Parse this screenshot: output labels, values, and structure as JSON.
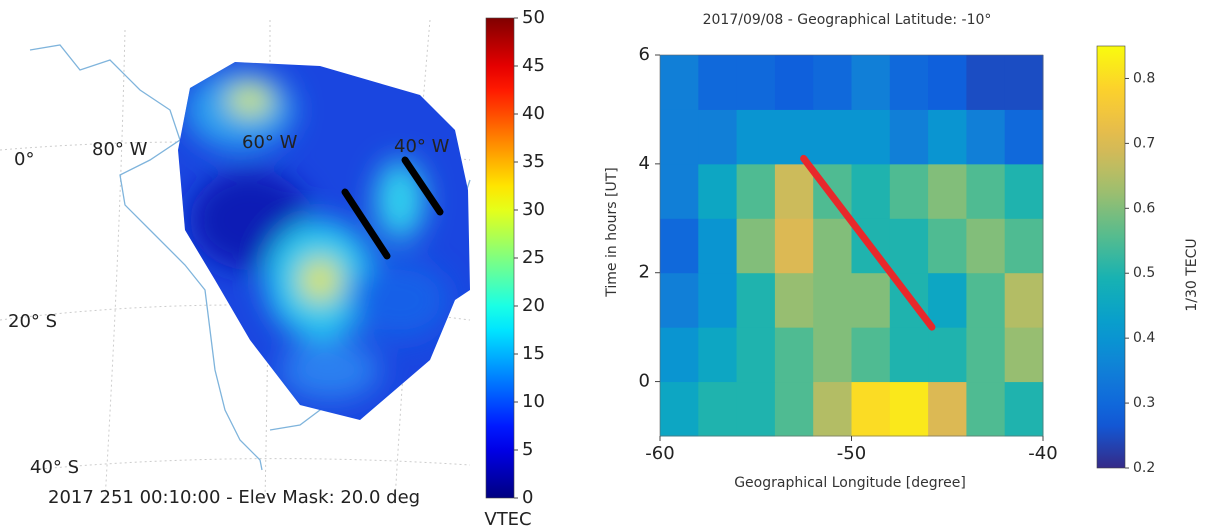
{
  "chart_data": [
    {
      "type": "map",
      "caption": "2017 251 00:10:00 - Elev Mask: 20.0 deg",
      "labels": [
        "0°",
        "80° W",
        "60° W",
        "40° W",
        "20° S",
        "40° S"
      ],
      "colorbar": {
        "label": "VTEC",
        "lim": [
          0,
          50
        ],
        "ticks": [
          0,
          5,
          10,
          15,
          20,
          25,
          30,
          35,
          40,
          45,
          50
        ],
        "colormap": "jet"
      }
    },
    {
      "type": "heatmap",
      "title": "2017/09/08 - Geographical Latitude: -10°",
      "xlabel": "Geographical Longitude [degree]",
      "ylabel": "Time in hours [UT]",
      "xlim": [
        -60,
        -40
      ],
      "xticks": [
        -60,
        -50,
        -40
      ],
      "ylim": [
        -1,
        6
      ],
      "yticks": [
        0,
        2,
        4,
        6
      ],
      "x": [
        -59,
        -57,
        -55,
        -53,
        -51,
        -49,
        -47,
        -45,
        -43,
        -41
      ],
      "y": [
        -0.5,
        0.5,
        1.5,
        2.5,
        3.5,
        4.5,
        5.5
      ],
      "z": [
        [
          0.45,
          0.5,
          0.5,
          0.55,
          0.65,
          0.8,
          0.82,
          0.7,
          0.55,
          0.5
        ],
        [
          0.4,
          0.45,
          0.5,
          0.55,
          0.6,
          0.55,
          0.5,
          0.5,
          0.55,
          0.62
        ],
        [
          0.35,
          0.4,
          0.5,
          0.62,
          0.6,
          0.6,
          0.5,
          0.45,
          0.55,
          0.65
        ],
        [
          0.3,
          0.4,
          0.6,
          0.7,
          0.6,
          0.5,
          0.5,
          0.55,
          0.6,
          0.55
        ],
        [
          0.35,
          0.45,
          0.55,
          0.68,
          0.55,
          0.5,
          0.55,
          0.6,
          0.55,
          0.5
        ],
        [
          0.35,
          0.35,
          0.4,
          0.4,
          0.4,
          0.4,
          0.35,
          0.4,
          0.35,
          0.3
        ],
        [
          0.35,
          0.3,
          0.3,
          0.28,
          0.3,
          0.35,
          0.3,
          0.28,
          0.25,
          0.25
        ]
      ],
      "series": [
        {
          "color": "#e8282b",
          "x": [
            -52.5,
            -45.8
          ],
          "y": [
            4.1,
            1.0
          ]
        }
      ],
      "colorbar": {
        "label": "1/30 TECU",
        "lim": [
          0.2,
          0.85
        ],
        "ticks": [
          0.2,
          0.3,
          0.4,
          0.5,
          0.6,
          0.7,
          0.8
        ],
        "colormap": "parula"
      }
    }
  ]
}
